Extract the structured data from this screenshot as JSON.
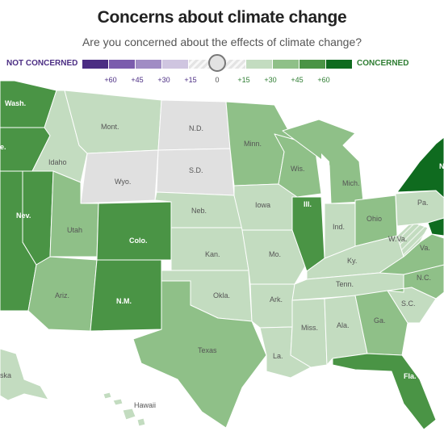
{
  "title": "Concerns about climate change",
  "subtitle": "Are you concerned about the effects of climate change?",
  "legend": {
    "left_label": "NOT CONCERNED",
    "right_label": "CONCERNED",
    "ticks": [
      "+60",
      "+45",
      "+30",
      "+15",
      "0",
      "+15",
      "+30",
      "+45",
      "+60"
    ],
    "colors": [
      "#4b2d83",
      "#7b5cad",
      "#a08cc4",
      "#cfc5e0",
      "#e0e0e0",
      "#c3dcc0",
      "#8fc088",
      "#4a9445",
      "#0f6b1f"
    ]
  },
  "states": {
    "wash": "Wash.",
    "ore": "e.",
    "nev": "Nev.",
    "idaho": "Idaho",
    "mont": "Mont.",
    "wyo": "Wyo.",
    "utah": "Utah",
    "colo": "Colo.",
    "ariz": "Ariz.",
    "nm": "N.M.",
    "nd": "N.D.",
    "sd": "S.D.",
    "neb": "Neb.",
    "kan": "Kan.",
    "okla": "Okla.",
    "texas": "Texas",
    "minn": "Minn.",
    "iowa": "Iowa",
    "mo": "Mo.",
    "ark": "Ark.",
    "la": "La.",
    "wis": "Wis.",
    "ill": "Ill.",
    "mich": "Mich.",
    "ind": "Ind.",
    "ohio": "Ohio",
    "ky": "Ky.",
    "tenn": "Tenn.",
    "miss": "Miss.",
    "ala": "Ala.",
    "ga": "Ga.",
    "fla": "Fla.",
    "sc": "S.C.",
    "nc": "N.C.",
    "va": "Va.",
    "wva": "W.Va.",
    "pa": "Pa.",
    "ny": "N",
    "alaska": "ska",
    "hawaii": "Hawaii"
  }
}
